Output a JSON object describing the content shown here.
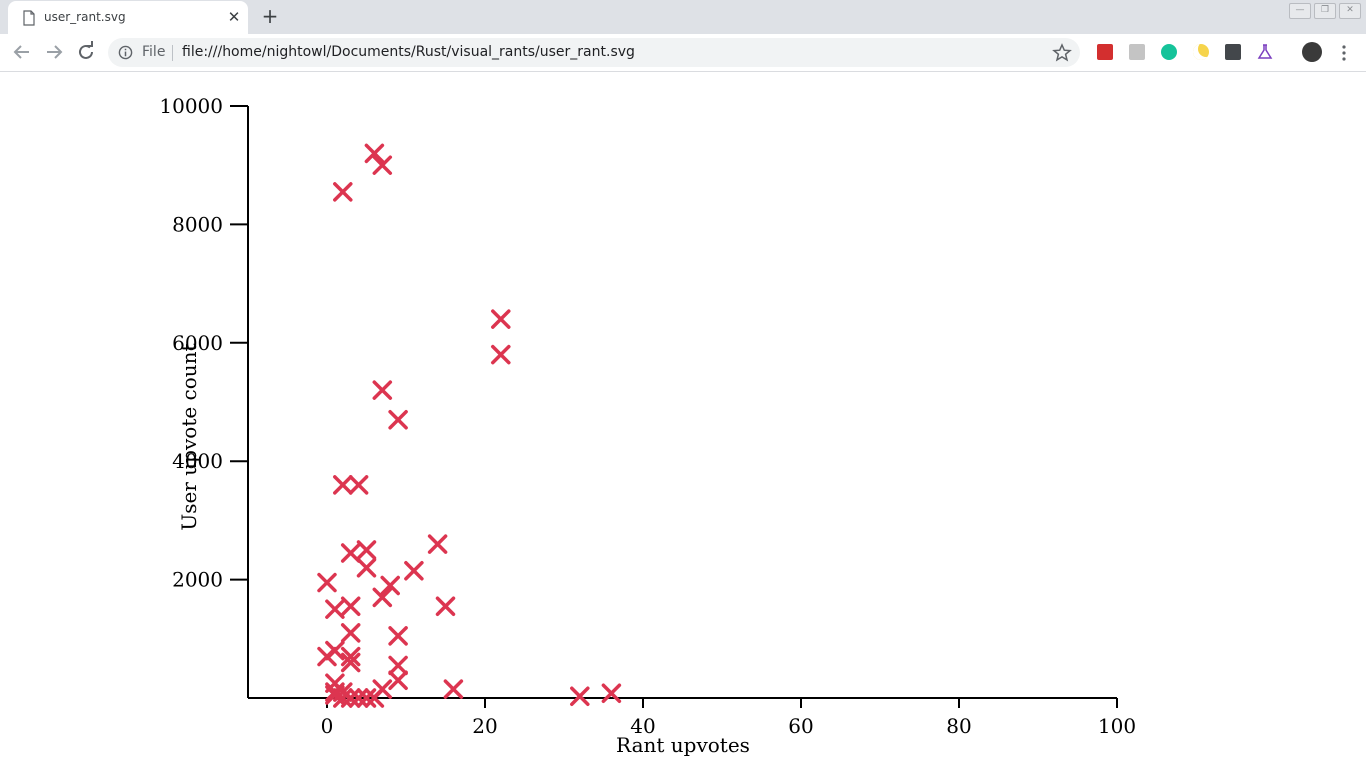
{
  "browser": {
    "tab_title": "user_rant.svg",
    "tab_close": "✕",
    "new_tab": "+",
    "omnibox_scheme_label": "File",
    "url": "file:///home/nightowl/Documents/Rust/visual_rants/user_rant.svg",
    "extensions": [
      "lastpass-icon",
      "google-translate-icon",
      "grammarly-icon",
      "night-mode-icon",
      "selenium-icon",
      "lab-flask-icon"
    ],
    "colors": {
      "tab_strip": "#dee1e6",
      "omnibox": "#f1f3f4",
      "marker": "#dc3550"
    }
  },
  "chart_data": {
    "type": "scatter",
    "marker": "x",
    "xlabel": "Rant upvotes",
    "ylabel": "User upvote count",
    "xlim": [
      -10,
      100
    ],
    "ylim": [
      0,
      10000
    ],
    "xticks": [
      0,
      20,
      40,
      60,
      80,
      100
    ],
    "yticks": [
      2000,
      4000,
      6000,
      8000,
      10000
    ],
    "xtick_labels": [
      "0",
      "20",
      "40",
      "60",
      "80",
      "100"
    ],
    "ytick_labels": [
      "2000",
      "4000",
      "6000",
      "8000",
      "10000"
    ],
    "grid": false,
    "legend": "none",
    "points": [
      [
        6,
        9200
      ],
      [
        7,
        9000
      ],
      [
        2,
        8550
      ],
      [
        22,
        6400
      ],
      [
        22,
        5800
      ],
      [
        7,
        5200
      ],
      [
        9,
        4700
      ],
      [
        2,
        3600
      ],
      [
        4,
        3600
      ],
      [
        14,
        2600
      ],
      [
        5,
        2500
      ],
      [
        3,
        2450
      ],
      [
        5,
        2200
      ],
      [
        11,
        2150
      ],
      [
        0,
        1950
      ],
      [
        8,
        1900
      ],
      [
        7,
        1700
      ],
      [
        15,
        1550
      ],
      [
        3,
        1550
      ],
      [
        1,
        1500
      ],
      [
        3,
        1100
      ],
      [
        9,
        1050
      ],
      [
        1,
        800
      ],
      [
        0,
        700
      ],
      [
        3,
        700
      ],
      [
        3,
        600
      ],
      [
        9,
        550
      ],
      [
        9,
        300
      ],
      [
        1,
        250
      ],
      [
        16,
        150
      ],
      [
        7,
        150
      ],
      [
        1,
        100
      ],
      [
        2,
        100
      ],
      [
        1,
        50
      ],
      [
        2,
        0
      ],
      [
        3,
        0
      ],
      [
        4,
        0
      ],
      [
        5,
        0
      ],
      [
        6,
        0
      ],
      [
        36,
        80
      ],
      [
        32,
        30
      ]
    ]
  }
}
